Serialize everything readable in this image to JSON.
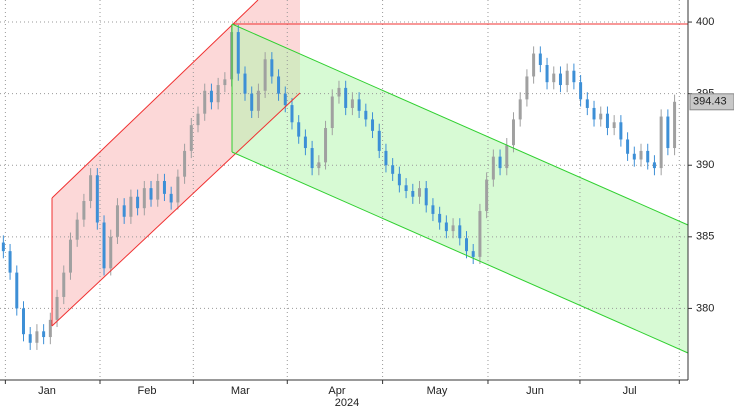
{
  "chart_data": {
    "type": "candlestick",
    "up_color": "#a0a0a0",
    "down_color": "#3d8fd6",
    "ylim": [
      375,
      401.54
    ],
    "yticks": [
      380,
      385,
      390,
      395,
      400
    ],
    "xlim": [
      -0.5,
      102
    ],
    "xticks": [
      {
        "value": 6.5,
        "label": "Jan"
      },
      {
        "value": 21.4,
        "label": "Feb"
      },
      {
        "value": 35.3,
        "label": "Mar"
      },
      {
        "value": 49.7,
        "label": "Apr"
      },
      {
        "value": 64.6,
        "label": "May"
      },
      {
        "value": 79.2,
        "label": "Jun"
      },
      {
        "value": 93.3,
        "label": "Jul"
      }
    ],
    "xgrid": [
      0.3,
      14.4,
      28.3,
      42.3,
      56.5,
      72.2,
      85.9,
      100.7
    ],
    "xlabel": "2024",
    "grid": true,
    "candles": [
      [
        384.6,
        385.1,
        383.5,
        384.0
      ],
      [
        384.0,
        384.5,
        382.0,
        382.5
      ],
      [
        382.5,
        383.0,
        379.5,
        380.0
      ],
      [
        380.0,
        380.5,
        377.7,
        378.2
      ],
      [
        378.2,
        378.7,
        377.1,
        377.6
      ],
      [
        377.6,
        378.9,
        377.1,
        378.4
      ],
      [
        378.4,
        378.9,
        377.5,
        378.0
      ],
      [
        378.0,
        379.7,
        377.5,
        379.2
      ],
      [
        379.2,
        381.3,
        378.7,
        380.8
      ],
      [
        380.8,
        383.0,
        380.3,
        382.5
      ],
      [
        382.5,
        385.3,
        382.0,
        384.8
      ],
      [
        384.8,
        386.7,
        384.3,
        386.2
      ],
      [
        386.2,
        388.0,
        385.7,
        387.5
      ],
      [
        387.5,
        389.8,
        387.0,
        389.3
      ],
      [
        389.3,
        389.8,
        385.5,
        386.0
      ],
      [
        386.0,
        386.5,
        382.3,
        382.8
      ],
      [
        382.8,
        385.5,
        382.3,
        385.0
      ],
      [
        385.0,
        387.7,
        384.5,
        387.2
      ],
      [
        387.2,
        387.7,
        385.9,
        386.4
      ],
      [
        386.4,
        388.3,
        385.9,
        387.8
      ],
      [
        387.8,
        388.3,
        386.5,
        387.0
      ],
      [
        387.0,
        388.9,
        386.5,
        388.4
      ],
      [
        388.4,
        388.9,
        387.1,
        387.6
      ],
      [
        387.6,
        389.4,
        387.1,
        388.9
      ],
      [
        388.9,
        389.4,
        387.5,
        388.0
      ],
      [
        388.0,
        388.5,
        386.9,
        387.4
      ],
      [
        387.4,
        389.7,
        386.9,
        389.2
      ],
      [
        389.2,
        391.5,
        388.7,
        391.0
      ],
      [
        391.0,
        393.3,
        390.5,
        392.8
      ],
      [
        392.8,
        394.1,
        392.3,
        393.6
      ],
      [
        393.6,
        395.7,
        393.1,
        395.2
      ],
      [
        395.2,
        395.7,
        393.9,
        394.4
      ],
      [
        394.4,
        396.1,
        393.9,
        395.6
      ],
      [
        395.6,
        396.5,
        395.1,
        396.0
      ],
      [
        396.0,
        399.8,
        395.5,
        399.3
      ],
      [
        399.3,
        399.8,
        395.9,
        396.4
      ],
      [
        396.4,
        396.9,
        394.5,
        395.0
      ],
      [
        395.0,
        395.5,
        393.3,
        393.8
      ],
      [
        393.8,
        395.7,
        393.3,
        395.2
      ],
      [
        395.2,
        397.9,
        394.7,
        397.4
      ],
      [
        397.4,
        397.9,
        395.7,
        396.2
      ],
      [
        396.2,
        396.7,
        394.5,
        395.0
      ],
      [
        395.0,
        395.5,
        393.7,
        394.2
      ],
      [
        394.2,
        394.7,
        392.5,
        393.0
      ],
      [
        393.0,
        393.5,
        391.5,
        392.0
      ],
      [
        392.0,
        392.5,
        390.7,
        391.2
      ],
      [
        391.2,
        391.7,
        389.3,
        389.8
      ],
      [
        389.8,
        390.7,
        389.3,
        390.2
      ],
      [
        390.2,
        393.1,
        389.7,
        392.6
      ],
      [
        392.6,
        395.3,
        392.1,
        394.8
      ],
      [
        394.8,
        395.9,
        394.3,
        395.4
      ],
      [
        395.4,
        395.9,
        393.5,
        394.0
      ],
      [
        394.0,
        395.1,
        393.5,
        394.6
      ],
      [
        394.6,
        395.1,
        393.3,
        393.8
      ],
      [
        393.8,
        394.3,
        392.7,
        393.2
      ],
      [
        393.2,
        393.7,
        391.9,
        392.4
      ],
      [
        392.4,
        392.9,
        390.5,
        391.0
      ],
      [
        391.0,
        391.5,
        389.5,
        390.0
      ],
      [
        390.0,
        390.5,
        388.9,
        389.4
      ],
      [
        389.4,
        389.9,
        388.1,
        388.6
      ],
      [
        388.6,
        389.1,
        387.7,
        388.2
      ],
      [
        388.2,
        388.7,
        387.3,
        387.8
      ],
      [
        387.8,
        388.9,
        387.3,
        388.4
      ],
      [
        388.4,
        388.9,
        386.7,
        387.2
      ],
      [
        387.2,
        387.7,
        386.1,
        386.6
      ],
      [
        386.6,
        387.1,
        385.5,
        386.0
      ],
      [
        386.0,
        386.5,
        384.9,
        385.4
      ],
      [
        385.4,
        386.3,
        384.9,
        385.8
      ],
      [
        385.8,
        386.3,
        384.4,
        384.9
      ],
      [
        384.9,
        385.4,
        383.5,
        384.0
      ],
      [
        384.0,
        384.5,
        383.1,
        383.6
      ],
      [
        383.6,
        387.3,
        383.1,
        386.8
      ],
      [
        386.8,
        389.5,
        386.3,
        389.0
      ],
      [
        389.0,
        391.1,
        388.5,
        390.6
      ],
      [
        390.6,
        391.1,
        389.3,
        389.8
      ],
      [
        389.8,
        391.9,
        389.3,
        391.4
      ],
      [
        391.4,
        393.7,
        390.9,
        393.2
      ],
      [
        393.2,
        395.1,
        392.7,
        394.6
      ],
      [
        394.6,
        396.7,
        394.1,
        396.2
      ],
      [
        396.2,
        398.3,
        395.7,
        397.8
      ],
      [
        397.8,
        398.3,
        396.5,
        397.0
      ],
      [
        397.0,
        397.5,
        395.3,
        395.8
      ],
      [
        395.8,
        396.9,
        395.3,
        396.4
      ],
      [
        396.4,
        396.9,
        395.1,
        395.6
      ],
      [
        395.6,
        397.1,
        395.1,
        396.6
      ],
      [
        396.6,
        397.1,
        395.3,
        395.8
      ],
      [
        395.8,
        396.3,
        394.1,
        394.6
      ],
      [
        394.6,
        395.1,
        393.5,
        394.0
      ],
      [
        394.0,
        394.5,
        392.7,
        393.2
      ],
      [
        393.2,
        394.1,
        392.7,
        393.6
      ],
      [
        393.6,
        394.1,
        392.1,
        392.6
      ],
      [
        392.6,
        393.5,
        392.1,
        393.0
      ],
      [
        393.0,
        393.5,
        391.3,
        391.8
      ],
      [
        391.8,
        392.3,
        390.3,
        390.8
      ],
      [
        390.8,
        391.3,
        389.9,
        390.4
      ],
      [
        390.4,
        391.5,
        389.9,
        391.0
      ],
      [
        391.0,
        391.5,
        389.7,
        390.2
      ],
      [
        390.2,
        390.7,
        389.3,
        389.8
      ],
      [
        389.8,
        393.9,
        389.3,
        393.4
      ],
      [
        393.4,
        393.9,
        390.7,
        391.2
      ],
      [
        391.2,
        394.93,
        390.7,
        394.43
      ]
    ]
  }
}
